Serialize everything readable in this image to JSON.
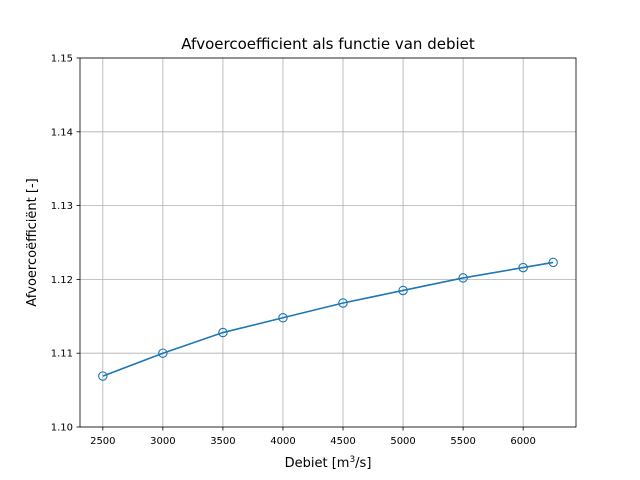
{
  "chart_data": {
    "type": "line",
    "title": "Afvoercoefficient als functie van debiet",
    "xlabel": {
      "prefix": "Debiet [m",
      "sup": "3",
      "suffix": "/s]"
    },
    "ylabel": "Afvoercoëfficiënt [-]",
    "xlim": [
      2310,
      6440
    ],
    "ylim": [
      1.1,
      1.15
    ],
    "xticks": [
      2500,
      3000,
      3500,
      4000,
      4500,
      5000,
      5500,
      6000
    ],
    "xtick_labels": [
      "2500",
      "3000",
      "3500",
      "4000",
      "4500",
      "5000",
      "5500",
      "6000"
    ],
    "yticks": [
      1.1,
      1.11,
      1.12,
      1.13,
      1.14,
      1.15
    ],
    "ytick_labels": [
      "1.10",
      "1.11",
      "1.12",
      "1.13",
      "1.14",
      "1.15"
    ],
    "grid": true,
    "marker": "open-circle",
    "series": [
      {
        "x": [
          2500,
          3000,
          3500,
          4000,
          4500,
          5000,
          5500,
          6000,
          6250
        ],
        "y": [
          1.1069,
          1.11,
          1.1128,
          1.1148,
          1.1168,
          1.1185,
          1.1202,
          1.1216,
          1.1223
        ],
        "color": "#1f77b4"
      }
    ],
    "grid_color": "#b0b0b0"
  }
}
